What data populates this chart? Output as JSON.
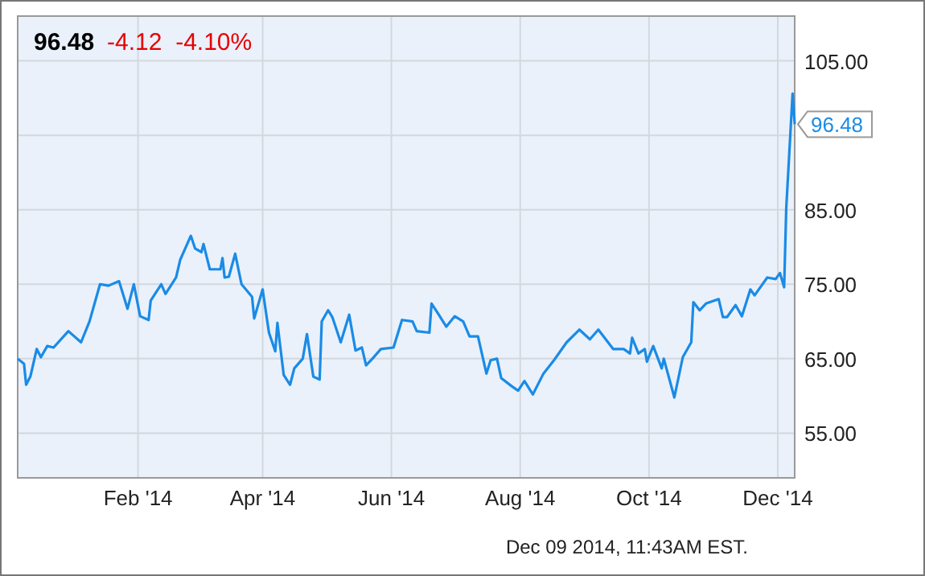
{
  "chart_data": {
    "type": "line",
    "title": "96.48",
    "subtitle": "-4.12  -4.10%",
    "x": [
      "2013-12-06",
      "2013-12-09",
      "2013-12-10",
      "2013-12-12",
      "2013-12-15",
      "2013-12-17",
      "2013-12-20",
      "2013-12-23",
      "2013-12-30",
      "2014-01-05",
      "2014-01-09",
      "2014-01-14",
      "2014-01-18",
      "2014-01-23",
      "2014-01-27",
      "2014-01-30",
      "2014-02-02",
      "2014-02-06",
      "2014-02-07",
      "2014-02-12",
      "2014-02-14",
      "2014-02-19",
      "2014-02-21",
      "2014-02-26",
      "2014-02-28",
      "2014-03-03",
      "2014-03-04",
      "2014-03-07",
      "2014-03-12",
      "2014-03-13",
      "2014-03-14",
      "2014-03-16",
      "2014-03-19",
      "2014-03-22",
      "2014-03-27",
      "2014-03-28",
      "2014-04-01",
      "2014-04-04",
      "2014-04-07",
      "2014-04-08",
      "2014-04-11",
      "2014-04-14",
      "2014-04-16",
      "2014-04-20",
      "2014-04-22",
      "2014-04-25",
      "2014-04-28",
      "2014-04-29",
      "2014-05-02",
      "2014-05-04",
      "2014-05-08",
      "2014-05-12",
      "2014-05-15",
      "2014-05-18",
      "2014-05-20",
      "2014-05-23",
      "2014-05-27",
      "2014-06-02",
      "2014-06-06",
      "2014-06-11",
      "2014-06-13",
      "2014-06-19",
      "2014-06-20",
      "2014-06-23",
      "2014-06-27",
      "2014-07-01",
      "2014-07-05",
      "2014-07-08",
      "2014-07-12",
      "2014-07-16",
      "2014-07-18",
      "2014-07-21",
      "2014-07-23",
      "2014-07-28",
      "2014-07-31",
      "2014-08-03",
      "2014-08-07",
      "2014-08-12",
      "2014-08-17",
      "2014-08-23",
      "2014-08-29",
      "2014-09-03",
      "2014-09-07",
      "2014-09-14",
      "2014-09-19",
      "2014-09-22",
      "2014-09-23",
      "2014-09-26",
      "2014-09-29",
      "2014-09-30",
      "2014-10-03",
      "2014-10-07",
      "2014-10-08",
      "2014-10-13",
      "2014-10-17",
      "2014-10-21",
      "2014-10-22",
      "2014-10-25",
      "2014-10-28",
      "2014-11-03",
      "2014-11-05",
      "2014-11-07",
      "2014-11-11",
      "2014-11-14",
      "2014-11-18",
      "2014-11-20",
      "2014-11-26",
      "2014-11-30",
      "2014-12-02",
      "2014-12-04",
      "2014-12-05",
      "2014-12-08",
      "2014-12-09"
    ],
    "series": [
      {
        "color": "#1a8be6",
        "values": [
          65,
          64.3,
          61.5,
          62.6,
          66.3,
          65.2,
          66.7,
          66.5,
          68.7,
          67.2,
          70,
          75,
          74.8,
          75.4,
          71.7,
          75,
          70.7,
          70.2,
          72.8,
          75,
          73.7,
          75.9,
          78.3,
          81.5,
          79.8,
          79.3,
          80.4,
          77,
          77,
          78.5,
          75.9,
          76,
          79.1,
          75,
          73.3,
          70.4,
          74.3,
          68.5,
          66,
          69.8,
          62.8,
          61.5,
          63.7,
          65,
          68.3,
          62.6,
          62.2,
          70,
          71.5,
          70.6,
          67.2,
          70.9,
          66.1,
          66.5,
          64.1,
          65,
          66.3,
          66.5,
          70.2,
          70,
          68.7,
          68.5,
          72.4,
          71.1,
          69.3,
          70.7,
          70,
          68,
          68,
          63,
          64.8,
          65,
          62.4,
          61.3,
          60.7,
          62,
          60.2,
          63,
          64.8,
          67.2,
          68.9,
          67.6,
          68.9,
          66.3,
          66.3,
          65.7,
          67.8,
          65.7,
          66.3,
          64.6,
          66.7,
          63.7,
          65,
          59.8,
          65.2,
          67.2,
          72.6,
          71.5,
          72.4,
          73,
          70.6,
          70.6,
          72.2,
          70.7,
          74.3,
          73.5,
          75.9,
          75.7,
          76.5,
          74.6,
          85.2,
          100.6,
          96.48
        ]
      }
    ],
    "xlim": [
      "2013-12-06",
      "2014-12-09"
    ],
    "xticks": [
      {
        "value": "2014-02-01",
        "label": "Feb '14"
      },
      {
        "value": "2014-04-01",
        "label": "Apr '14"
      },
      {
        "value": "2014-06-01",
        "label": "Jun '14"
      },
      {
        "value": "2014-08-01",
        "label": "Aug '14"
      },
      {
        "value": "2014-10-01",
        "label": "Oct '14"
      },
      {
        "value": "2014-12-01",
        "label": "Dec '14"
      }
    ],
    "ylim": [
      49,
      111
    ],
    "yticks": [
      {
        "value": 55,
        "label": "55.00"
      },
      {
        "value": 65,
        "label": "65.00"
      },
      {
        "value": 75,
        "label": "75.00"
      },
      {
        "value": 85,
        "label": "85.00"
      },
      {
        "value": 95,
        "label": null
      },
      {
        "value": 105,
        "label": "105.00"
      }
    ],
    "grid": true,
    "marker": "none",
    "line_style": "solid",
    "annotations": [
      {
        "text": "96.48",
        "x": "2014-12-09",
        "y": 96.48
      },
      "Dec 09 2014, 11:43AM EST."
    ]
  }
}
